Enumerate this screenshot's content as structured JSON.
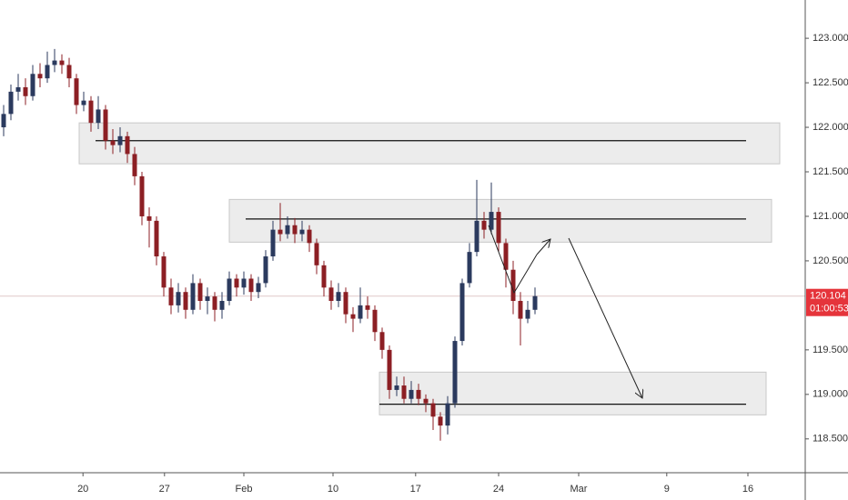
{
  "chart_data": {
    "type": "candlestick",
    "up_color": "#2b3a5e",
    "down_color": "#8c1f24",
    "xlim": [
      0,
      110.625
    ],
    "xticks": [
      {
        "value": 11.4,
        "label": "20"
      },
      {
        "value": 22.6,
        "label": "27"
      },
      {
        "value": 33.5,
        "label": "Feb"
      },
      {
        "value": 45.75,
        "label": "10"
      },
      {
        "value": 57.1,
        "label": "17"
      },
      {
        "value": 68.5,
        "label": "24"
      },
      {
        "value": 79.5,
        "label": "Mar"
      },
      {
        "value": 91.6,
        "label": "9"
      },
      {
        "value": 102.75,
        "label": "16"
      }
    ],
    "ylim": [
      118.12,
      123.43
    ],
    "yticks": [
      {
        "value": 118.5,
        "label": "118.500"
      },
      {
        "value": 119,
        "label": "119.000"
      },
      {
        "value": 119.5,
        "label": "119.500"
      },
      {
        "value": 120.5,
        "label": "120.500"
      },
      {
        "value": 121,
        "label": "121.000"
      },
      {
        "value": 121.5,
        "label": "121.500"
      },
      {
        "value": 122,
        "label": "122.000"
      },
      {
        "value": 122.5,
        "label": "122.500"
      },
      {
        "value": 123,
        "label": "123.000"
      }
    ],
    "open": [
      122.0,
      122.15,
      122.4,
      122.45,
      122.35,
      122.6,
      122.55,
      122.7,
      122.75,
      122.7,
      122.55,
      122.25,
      122.3,
      122.05,
      122.2,
      121.85,
      121.8,
      121.9,
      121.7,
      121.45,
      121.0,
      120.95,
      120.55,
      120.2,
      120.0,
      120.15,
      119.95,
      120.25,
      120.05,
      120.1,
      119.95,
      120.05,
      120.3,
      120.2,
      120.3,
      120.15,
      120.25,
      120.55,
      120.85,
      120.8,
      120.9,
      120.8,
      120.85,
      120.7,
      120.45,
      120.2,
      120.05,
      120.15,
      119.9,
      119.85,
      120.0,
      119.95,
      119.7,
      119.5,
      119.05,
      119.1,
      118.95,
      119.05,
      118.95,
      118.9,
      118.75,
      118.65,
      118.9,
      119.6,
      120.25,
      120.6,
      120.95,
      120.85,
      121.05,
      120.7,
      120.4,
      120.05,
      119.85,
      119.95
    ],
    "high": [
      122.25,
      122.48,
      122.6,
      122.55,
      122.7,
      122.72,
      122.85,
      122.88,
      122.82,
      122.78,
      122.6,
      122.4,
      122.35,
      122.35,
      122.25,
      121.98,
      122.0,
      121.95,
      121.78,
      121.5,
      121.1,
      121.0,
      120.6,
      120.3,
      120.25,
      120.2,
      120.35,
      120.3,
      120.2,
      120.15,
      120.15,
      120.38,
      120.35,
      120.38,
      120.35,
      120.32,
      120.62,
      120.95,
      121.15,
      121.0,
      120.98,
      120.95,
      120.9,
      120.75,
      120.5,
      120.28,
      120.25,
      120.2,
      119.98,
      120.2,
      120.1,
      120.0,
      119.75,
      119.55,
      119.2,
      119.2,
      119.15,
      119.12,
      119.0,
      118.95,
      118.8,
      118.98,
      119.65,
      120.3,
      120.7,
      121.41,
      121.05,
      121.38,
      121.1,
      120.75,
      120.5,
      120.15,
      120.05,
      120.2
    ],
    "low": [
      121.9,
      122.08,
      122.3,
      122.25,
      122.3,
      122.45,
      122.5,
      122.62,
      122.6,
      122.45,
      122.15,
      122.18,
      121.95,
      121.98,
      121.75,
      121.7,
      121.72,
      121.6,
      121.35,
      120.9,
      120.65,
      120.45,
      120.1,
      119.9,
      119.92,
      119.85,
      119.9,
      119.95,
      119.9,
      119.82,
      119.85,
      120.0,
      120.1,
      120.12,
      120.05,
      120.08,
      120.2,
      120.5,
      120.72,
      120.75,
      120.7,
      120.72,
      120.6,
      120.35,
      120.1,
      119.95,
      119.98,
      119.8,
      119.7,
      119.8,
      119.85,
      119.6,
      119.4,
      118.95,
      118.98,
      118.9,
      118.9,
      118.88,
      118.8,
      118.6,
      118.48,
      118.55,
      118.85,
      119.55,
      120.2,
      120.55,
      120.75,
      120.8,
      120.6,
      120.2,
      119.9,
      119.55,
      119.8,
      119.9
    ],
    "close": [
      122.15,
      122.4,
      122.45,
      122.35,
      122.6,
      122.55,
      122.7,
      122.75,
      122.7,
      122.55,
      122.25,
      122.3,
      122.05,
      122.2,
      121.85,
      121.8,
      121.9,
      121.7,
      121.45,
      121.0,
      120.95,
      120.55,
      120.2,
      120.0,
      120.15,
      119.95,
      120.25,
      120.05,
      120.1,
      119.95,
      120.05,
      120.3,
      120.2,
      120.3,
      120.15,
      120.25,
      120.55,
      120.85,
      120.8,
      120.9,
      120.8,
      120.85,
      120.7,
      120.45,
      120.2,
      120.05,
      120.15,
      119.9,
      119.85,
      120.0,
      119.95,
      119.7,
      119.5,
      119.05,
      119.1,
      118.95,
      119.05,
      118.95,
      118.9,
      118.75,
      118.65,
      118.9,
      119.6,
      120.25,
      120.6,
      120.95,
      120.85,
      121.05,
      120.7,
      120.4,
      120.05,
      119.85,
      119.95,
      120.104
    ],
    "countdown": "01:00:53",
    "zones": [
      {
        "low": 121.59,
        "high": 122.05,
        "level": 121.85
      },
      {
        "low": 120.71,
        "high": 121.19,
        "level": 120.97
      },
      {
        "low": 118.77,
        "high": 119.25,
        "level": 118.89
      }
    ]
  }
}
